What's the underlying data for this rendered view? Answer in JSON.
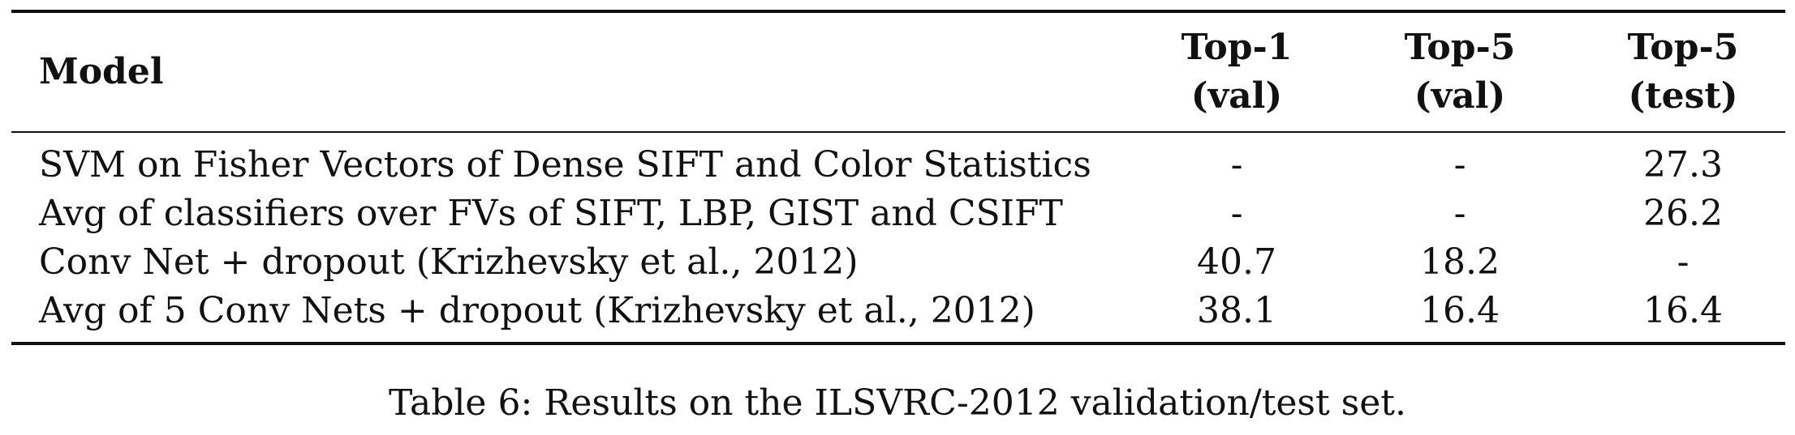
{
  "table": {
    "headers": {
      "model": "Model",
      "top1_val": [
        "Top-1",
        "(val)"
      ],
      "top5_val": [
        "Top-5",
        "(val)"
      ],
      "top5_test": [
        "Top-5",
        "(test)"
      ]
    },
    "rows": [
      {
        "model": "SVM on Fisher Vectors of Dense SIFT and Color Statistics",
        "top1_val": "-",
        "top5_val": "-",
        "top5_test": "27.3"
      },
      {
        "model": "Avg of classifiers over FVs of SIFT, LBP, GIST and CSIFT",
        "top1_val": "-",
        "top5_val": "-",
        "top5_test": "26.2"
      },
      {
        "model": "Conv Net + dropout (Krizhevsky et al., 2012)",
        "top1_val": "40.7",
        "top5_val": "18.2",
        "top5_test": "-"
      },
      {
        "model": "Avg of 5 Conv Nets + dropout (Krizhevsky et al., 2012)",
        "top1_val": "38.1",
        "top5_val": "16.4",
        "top5_test": "16.4"
      }
    ]
  },
  "caption": "Table 6: Results on the ILSVRC-2012 validation/test set."
}
